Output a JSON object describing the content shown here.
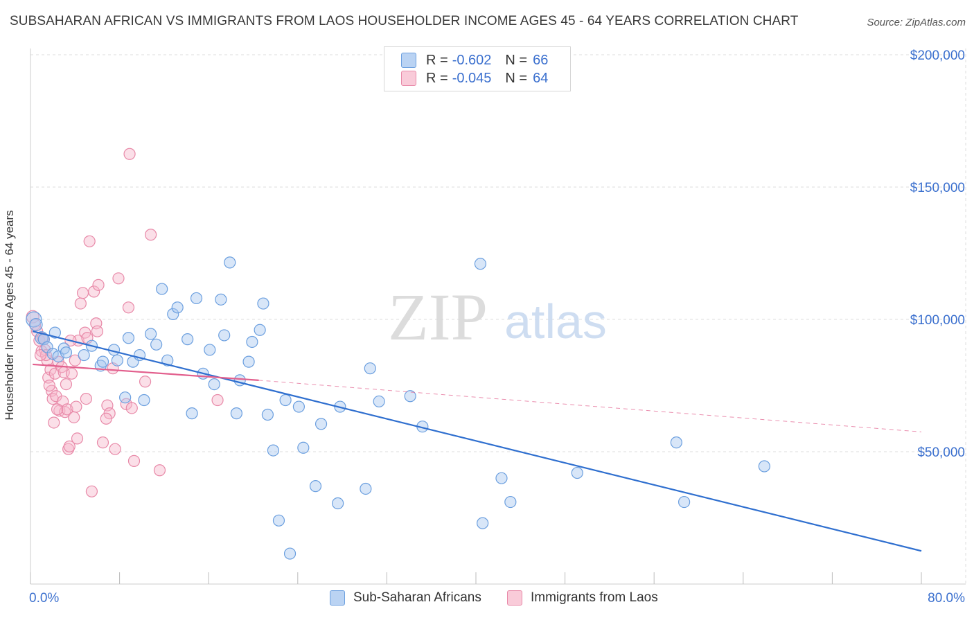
{
  "title": "SUBSAHARAN AFRICAN VS IMMIGRANTS FROM LAOS HOUSEHOLDER INCOME AGES 45 - 64 YEARS CORRELATION CHART",
  "source": "Source: ZipAtlas.com",
  "watermark": {
    "zip": "ZIP",
    "atlas": "atlas"
  },
  "legend": {
    "rows": [
      {
        "r_label": "R =",
        "r_value": "-0.602",
        "n_label": "N =",
        "n_value": "66"
      },
      {
        "r_label": "R =",
        "r_value": "-0.045",
        "n_label": "N =",
        "n_value": "64"
      }
    ]
  },
  "bottom_legend": {
    "series1": "Sub-Saharan Africans",
    "series2": "Immigrants from Laos"
  },
  "colors": {
    "blue_fill": "#a9c8f0",
    "blue_stroke": "#6b9fdf",
    "blue_line": "#2f6fcf",
    "pink_fill": "#f7b8cc",
    "pink_stroke": "#e889a8",
    "pink_line": "#e25f8d",
    "axis_text": "#3a6fce",
    "grid": "#dcdcdc"
  },
  "chart_data": {
    "type": "scatter",
    "title": "SUBSAHARAN AFRICAN VS IMMIGRANTS FROM LAOS HOUSEHOLDER INCOME AGES 45 - 64 YEARS CORRELATION CHART",
    "xlabel": "",
    "ylabel": "Householder Income Ages 45 - 64 years",
    "xlim": [
      0,
      80
    ],
    "ylim": [
      0,
      210000
    ],
    "x_tick_labels": [
      "0.0%",
      "80.0%"
    ],
    "y_ticks": [
      50000,
      100000,
      150000,
      200000
    ],
    "y_tick_labels": [
      "$50,000",
      "$100,000",
      "$150,000",
      "$200,000"
    ],
    "grid": true,
    "legend_position": "top-center",
    "series": [
      {
        "name": "Sub-Saharan Africans",
        "r": -0.602,
        "n": 66,
        "trend": {
          "x": [
            0.2,
            80.0
          ],
          "y": [
            95500,
            12500
          ],
          "dashed_to": null
        },
        "points": [
          [
            0.3,
            100000,
            11
          ],
          [
            0.5,
            98000,
            9
          ],
          [
            1.0,
            93000,
            9
          ],
          [
            1.2,
            92500,
            8
          ],
          [
            1.5,
            89500,
            8
          ],
          [
            2.0,
            87000,
            8
          ],
          [
            2.5,
            86000,
            8
          ],
          [
            3.0,
            89000,
            8
          ],
          [
            3.2,
            87500,
            8
          ],
          [
            4.8,
            86500,
            8
          ],
          [
            5.5,
            90000,
            8
          ],
          [
            6.3,
            82500,
            8
          ],
          [
            6.5,
            84000,
            8
          ],
          [
            7.5,
            88500,
            8
          ],
          [
            7.8,
            84500,
            8
          ],
          [
            8.5,
            70500,
            8
          ],
          [
            8.8,
            93000,
            8
          ],
          [
            9.2,
            84000,
            8
          ],
          [
            9.8,
            86500,
            8
          ],
          [
            10.2,
            69500,
            8
          ],
          [
            10.8,
            94500,
            8
          ],
          [
            11.3,
            90500,
            8
          ],
          [
            11.8,
            111500,
            8
          ],
          [
            12.3,
            84500,
            8
          ],
          [
            12.8,
            102000,
            8
          ],
          [
            13.2,
            104500,
            8
          ],
          [
            14.1,
            92500,
            8
          ],
          [
            14.5,
            64500,
            8
          ],
          [
            14.9,
            108000,
            8
          ],
          [
            15.5,
            79500,
            8
          ],
          [
            16.1,
            88500,
            8
          ],
          [
            16.5,
            75500,
            8
          ],
          [
            17.1,
            107500,
            8
          ],
          [
            17.4,
            94000,
            8
          ],
          [
            17.9,
            121500,
            8
          ],
          [
            18.5,
            64500,
            8
          ],
          [
            18.8,
            77000,
            8
          ],
          [
            19.6,
            84000,
            8
          ],
          [
            19.9,
            91500,
            8
          ],
          [
            20.6,
            96000,
            8
          ],
          [
            20.9,
            106000,
            8
          ],
          [
            21.3,
            64000,
            8
          ],
          [
            21.8,
            50500,
            8
          ],
          [
            22.3,
            24000,
            8
          ],
          [
            22.9,
            69500,
            8
          ],
          [
            23.3,
            11500,
            8
          ],
          [
            24.1,
            67000,
            8
          ],
          [
            24.5,
            51500,
            8
          ],
          [
            25.6,
            37000,
            8
          ],
          [
            26.1,
            60500,
            8
          ],
          [
            27.6,
            30500,
            8
          ],
          [
            27.8,
            67000,
            8
          ],
          [
            30.1,
            36000,
            8
          ],
          [
            30.5,
            81500,
            8
          ],
          [
            31.3,
            69000,
            8
          ],
          [
            34.1,
            71000,
            8
          ],
          [
            35.2,
            59500,
            8
          ],
          [
            40.4,
            121000,
            8
          ],
          [
            40.6,
            23000,
            8
          ],
          [
            42.3,
            40000,
            8
          ],
          [
            43.1,
            31000,
            8
          ],
          [
            49.1,
            42000,
            8
          ],
          [
            58.0,
            53500,
            8
          ],
          [
            58.7,
            31000,
            8
          ],
          [
            65.9,
            44500,
            8
          ],
          [
            2.2,
            95000,
            8
          ]
        ]
      },
      {
        "name": "Immigrants from Laos",
        "r": -0.045,
        "n": 64,
        "trend": {
          "x": [
            0.2,
            20.5
          ],
          "y": [
            83000,
            77000
          ],
          "dashed_to": [
            80.0,
            57500
          ]
        },
        "points": [
          [
            0.2,
            101000,
            9
          ],
          [
            0.4,
            98000,
            8
          ],
          [
            0.6,
            95500,
            8
          ],
          [
            0.8,
            92000,
            8
          ],
          [
            1.0,
            88000,
            8
          ],
          [
            1.2,
            92500,
            8
          ],
          [
            1.3,
            88500,
            8
          ],
          [
            1.5,
            84500,
            8
          ],
          [
            1.6,
            78000,
            8
          ],
          [
            1.8,
            81000,
            8
          ],
          [
            1.9,
            73000,
            8
          ],
          [
            2.0,
            70000,
            8
          ],
          [
            2.1,
            61000,
            8
          ],
          [
            2.2,
            79500,
            8
          ],
          [
            2.3,
            71000,
            8
          ],
          [
            2.5,
            84000,
            8
          ],
          [
            2.6,
            65500,
            8
          ],
          [
            2.8,
            82000,
            8
          ],
          [
            2.9,
            69000,
            8
          ],
          [
            3.0,
            80000,
            8
          ],
          [
            3.1,
            65000,
            8
          ],
          [
            3.2,
            75500,
            8
          ],
          [
            3.3,
            66000,
            8
          ],
          [
            3.4,
            51000,
            8
          ],
          [
            3.5,
            52000,
            8
          ],
          [
            3.7,
            79500,
            8
          ],
          [
            3.9,
            63000,
            8
          ],
          [
            4.1,
            67000,
            8
          ],
          [
            4.2,
            55000,
            8
          ],
          [
            4.3,
            92000,
            8
          ],
          [
            4.5,
            106000,
            8
          ],
          [
            4.7,
            110000,
            8
          ],
          [
            4.9,
            95000,
            8
          ],
          [
            5.1,
            93000,
            8
          ],
          [
            5.3,
            129500,
            8
          ],
          [
            5.5,
            35000,
            8
          ],
          [
            5.7,
            110500,
            8
          ],
          [
            5.9,
            98500,
            8
          ],
          [
            6.1,
            113000,
            8
          ],
          [
            6.5,
            53500,
            8
          ],
          [
            6.9,
            67500,
            8
          ],
          [
            7.1,
            64500,
            8
          ],
          [
            7.4,
            81500,
            8
          ],
          [
            7.6,
            51000,
            8
          ],
          [
            7.9,
            115500,
            8
          ],
          [
            8.6,
            68000,
            8
          ],
          [
            8.8,
            104500,
            8
          ],
          [
            8.9,
            162500,
            8
          ],
          [
            9.1,
            66500,
            8
          ],
          [
            9.3,
            46500,
            8
          ],
          [
            10.3,
            76500,
            8
          ],
          [
            10.8,
            132000,
            8
          ],
          [
            11.6,
            43000,
            8
          ],
          [
            16.8,
            69500,
            8
          ],
          [
            1.1,
            93000,
            8
          ],
          [
            1.4,
            86500,
            8
          ],
          [
            2.4,
            66000,
            8
          ],
          [
            3.6,
            92000,
            8
          ],
          [
            4.0,
            84500,
            8
          ],
          [
            5.0,
            70000,
            8
          ],
          [
            6.0,
            95500,
            8
          ],
          [
            6.8,
            62500,
            8
          ],
          [
            0.9,
            86500,
            8
          ],
          [
            1.7,
            75000,
            8
          ]
        ]
      }
    ]
  }
}
